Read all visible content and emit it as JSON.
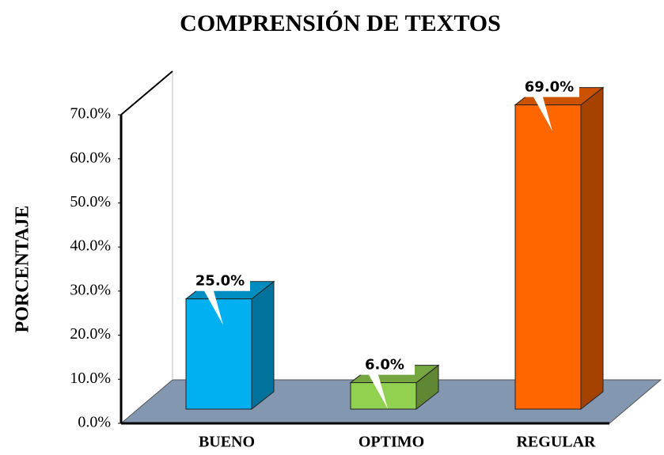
{
  "chart_data": {
    "type": "bar3d",
    "title": "COMPRENSIÓN DE TEXTOS",
    "y_label": "PORCENTAJE",
    "categories": [
      "BUENO",
      "OPTIMO",
      "REGULAR"
    ],
    "values": [
      25,
      6,
      69
    ],
    "value_labels": [
      "25.0%",
      "6.0%",
      "69.0%"
    ],
    "colors": [
      "#00b0f0",
      "#92d050",
      "#ff6600"
    ],
    "ylim": [
      0,
      70
    ],
    "yticks": [
      {
        "value": 0,
        "label": "0.0%"
      },
      {
        "value": 10,
        "label": "10.0%"
      },
      {
        "value": 20,
        "label": "20.0%"
      },
      {
        "value": 30,
        "label": "30.0%"
      },
      {
        "value": 40,
        "label": "40.0%"
      },
      {
        "value": 50,
        "label": "50.0%"
      },
      {
        "value": 60,
        "label": "60.0%"
      },
      {
        "value": 70,
        "label": "70.0%"
      }
    ],
    "grid": false
  }
}
